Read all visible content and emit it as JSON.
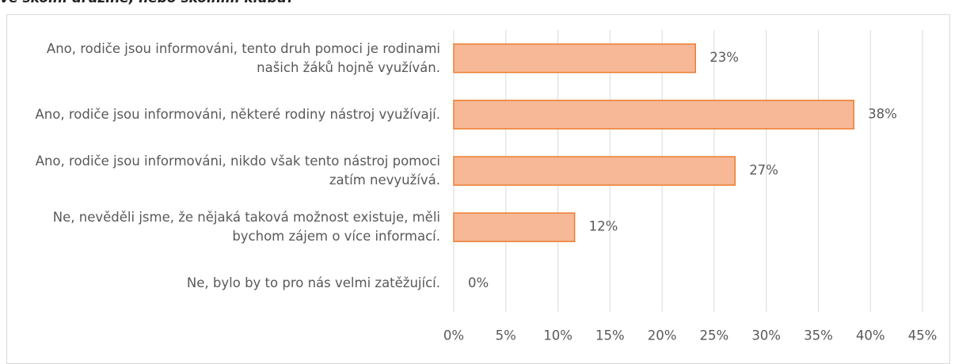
{
  "chart_data": {
    "type": "bar",
    "orientation": "horizontal",
    "title": "ve školní družině, nebo školním klubu?",
    "categories": [
      "Ano, rodiče jsou informováni, tento druh pomoci je rodinami našich žáků hojně využíván.",
      "Ano, rodiče jsou informováni, některé rodiny nástroj využívají.",
      "Ano, rodiče jsou informováni, nikdo však tento nástroj pomoci zatím nevyužívá.",
      "Ne, nevěděli jsme, že nějaká taková možnost existuje, měli bychom zájem o více informací.",
      "Ne, bylo by to pro nás velmi zatěžující."
    ],
    "values": [
      23.2,
      38.4,
      27,
      11.6,
      0
    ],
    "value_labels": [
      "23%",
      "38%",
      "27%",
      "12%",
      "0%"
    ],
    "color": "#f6b896",
    "edge_color": "#ed7d31",
    "xlim": [
      0,
      45
    ],
    "xticks": [
      {
        "value": 0,
        "label": "0%"
      },
      {
        "value": 5,
        "label": "5%"
      },
      {
        "value": 10,
        "label": "10%"
      },
      {
        "value": 15,
        "label": "15%"
      },
      {
        "value": 20,
        "label": "20%"
      },
      {
        "value": 25,
        "label": "25%"
      },
      {
        "value": 30,
        "label": "30%"
      },
      {
        "value": 35,
        "label": "35%"
      },
      {
        "value": 40,
        "label": "40%"
      },
      {
        "value": 45,
        "label": "45%"
      }
    ],
    "grid": true
  }
}
